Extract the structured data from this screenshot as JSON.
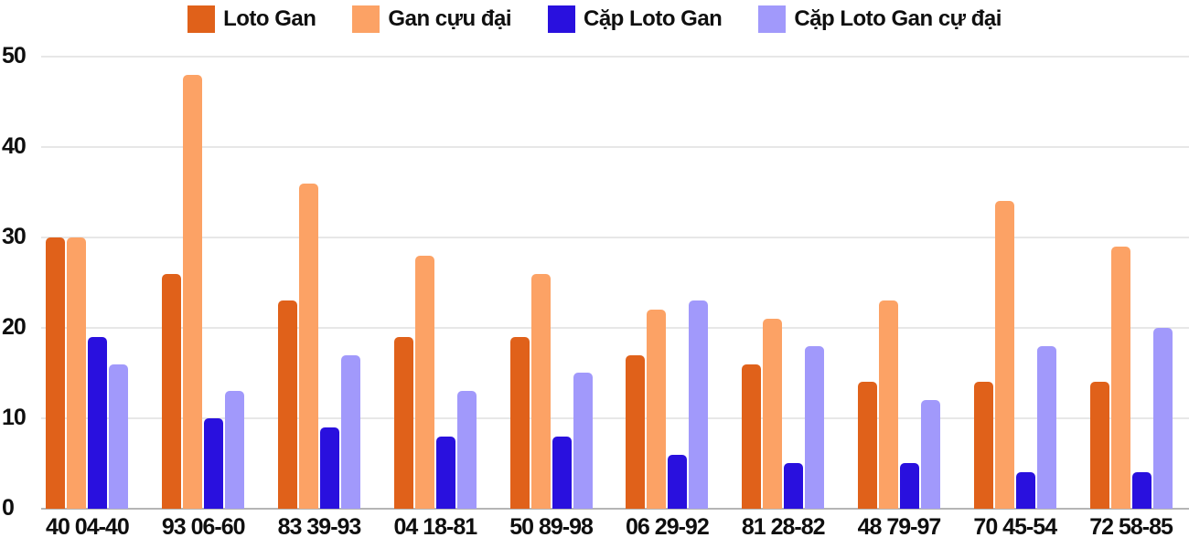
{
  "chart_data": {
    "type": "bar",
    "title": "",
    "xlabel": "",
    "ylabel": "",
    "categories": [
      "40 04-40",
      "93 06-60",
      "83 39-93",
      "04 18-81",
      "50 89-98",
      "06 29-92",
      "81 28-82",
      "48 79-97",
      "70 45-54",
      "72 58-85"
    ],
    "series": [
      {
        "name": "Loto Gan",
        "color": "#E0611A",
        "values": [
          30,
          26,
          23,
          19,
          19,
          17,
          16,
          14,
          14,
          14
        ]
      },
      {
        "name": "Gan cựu đại",
        "color": "#FCA265",
        "values": [
          30,
          48,
          36,
          28,
          26,
          22,
          21,
          23,
          34,
          29
        ]
      },
      {
        "name": "Cặp Loto Gan",
        "color": "#2910DE",
        "values": [
          19,
          10,
          9,
          8,
          8,
          6,
          5,
          5,
          4,
          4
        ]
      },
      {
        "name": "Cặp Loto Gan cự đại",
        "color": "#A199FB",
        "values": [
          16,
          13,
          17,
          13,
          15,
          23,
          18,
          12,
          18,
          20
        ]
      }
    ],
    "ylim": [
      0,
      50
    ],
    "yticks": [
      0,
      10,
      20,
      30,
      40,
      50
    ],
    "grid": true,
    "legend_position": "top"
  },
  "colors": {
    "gridline": "#E7E7E7",
    "baseline": "#B5B5B5",
    "text": "#0F0F0F",
    "background": "#FFFFFF"
  }
}
